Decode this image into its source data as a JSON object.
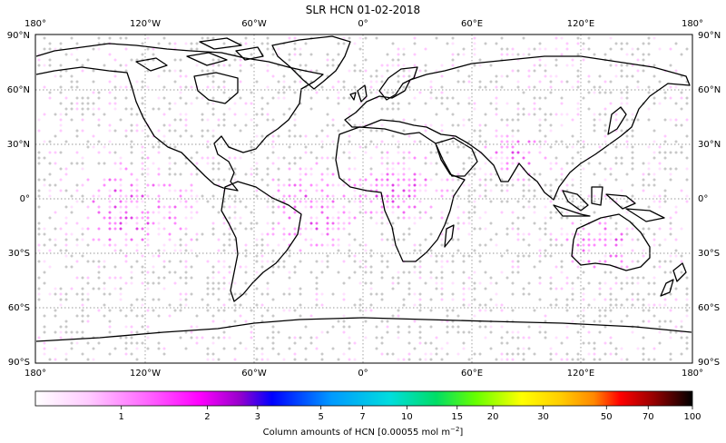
{
  "title": "SLR HCN 01-02-2018",
  "map": {
    "projection": "PlateCarree",
    "lon_range": [
      -180,
      180
    ],
    "lat_range": [
      -90,
      90
    ],
    "gridlines": true,
    "top_lon_labels": [
      "180°",
      "120°W",
      "60°W",
      "0°",
      "60°E",
      "120°E",
      "180°"
    ],
    "bottom_lon_labels": [
      "180°",
      "120°W",
      "60°W",
      "0°",
      "60°E",
      "120°E",
      "180°"
    ],
    "left_lat_labels": [
      "90°N",
      "60°N",
      "30°N",
      "0°",
      "30°S",
      "60°S",
      "90°S"
    ],
    "right_lat_labels": [
      "90°N",
      "60°N",
      "30°N",
      "0°",
      "30°S",
      "60°S",
      "90°S"
    ],
    "no_data_color": "#c8c8c8",
    "high_density_regions": [
      "central Africa",
      "India / South Asia",
      "tropical Atlantic",
      "northern Australia"
    ]
  },
  "colorbar": {
    "label": "Column amounts of HCN [0.00055 mol m",
    "label_suffix": "]",
    "label_exponent": "−2",
    "ticks": [
      "1",
      "2",
      "3",
      "5",
      "7",
      "10",
      "15",
      "20",
      "30",
      "50",
      "70",
      "100"
    ],
    "tick_values": [
      1,
      2,
      3,
      5,
      7,
      10,
      15,
      20,
      30,
      50,
      70,
      100
    ],
    "scale": "log",
    "range": [
      0.5,
      100
    ],
    "color_stops": [
      "#ffffff",
      "#ff66ff",
      "#ff00ff",
      "#9900cc",
      "#0000ff",
      "#0088ff",
      "#00dddd",
      "#00dd66",
      "#66ff00",
      "#ffff00",
      "#ff9900",
      "#ff0000",
      "#990000",
      "#000000"
    ]
  }
}
